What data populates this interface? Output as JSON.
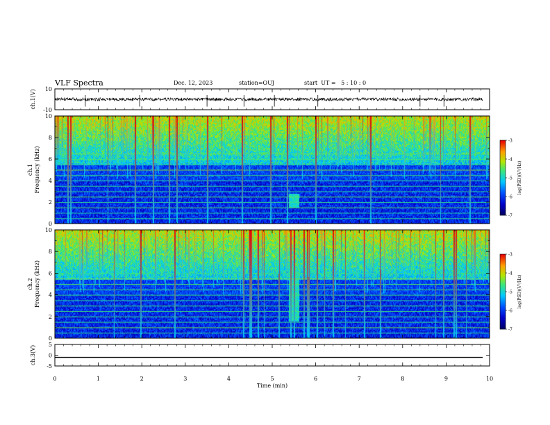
{
  "header": {
    "title": "VLF Spectra",
    "date": "Dec. 12, 2023",
    "station": "station=OUJ",
    "start_ut": "start  UT =   5 : 10 : 0"
  },
  "colors": {
    "background": "#ffffff",
    "axis": "#000000",
    "spec_base": "#1a1a8c"
  },
  "chart_data": [
    {
      "type": "line",
      "name": "ch1-waveform",
      "ylabel": "ch.1(V)",
      "ylim": [
        -10,
        10
      ],
      "yticks": [
        "10",
        "-10"
      ],
      "xlim": [
        0,
        10
      ],
      "baseline": 0,
      "spikes_min": [
        0.7,
        1.95,
        3.5,
        4.35,
        5.05,
        6.05,
        8.4,
        8.95
      ]
    },
    {
      "type": "heatmap",
      "name": "ch1-spectrogram",
      "ylabel": "ch.1\nFrequency (kHz)",
      "ylabel_line1": "ch.1",
      "ylabel_line2": "Frequency (kHz)",
      "ylim": [
        0,
        10
      ],
      "yticks": [
        "0",
        "2",
        "4",
        "6",
        "8",
        "10"
      ],
      "xlim": [
        0,
        10
      ],
      "colorbar": {
        "label": "log(PSD)(V²/Hz)",
        "range": [
          -7,
          -3
        ],
        "ticks": [
          "-3",
          "-4",
          "-5",
          "-6",
          "-7"
        ]
      },
      "features": [
        {
          "type": "line_harmonics_khz",
          "values": [
            0.5,
            1.0,
            1.5,
            2.0,
            2.5,
            3.0,
            3.5,
            4.0,
            4.5,
            5.0,
            5.5,
            6.0,
            6.5
          ]
        },
        {
          "type": "event",
          "time_min": 5.5,
          "freq_khz": [
            1.6,
            2.8
          ]
        }
      ]
    },
    {
      "type": "heatmap",
      "name": "ch2-spectrogram",
      "ylabel": "ch.2\nFrequency (kHz)",
      "ylabel_line1": "ch.2",
      "ylabel_line2": "Frequency (kHz)",
      "ylim": [
        0,
        10
      ],
      "yticks": [
        "0",
        "2",
        "4",
        "6",
        "8",
        "10"
      ],
      "xlim": [
        0,
        10
      ],
      "colorbar": {
        "label": "log(PSD)(V²/Hz)",
        "range": [
          -7,
          -3
        ],
        "ticks": [
          "-3",
          "-4",
          "-5",
          "-6",
          "-7"
        ]
      },
      "features": [
        {
          "type": "line_harmonics_khz",
          "values": [
            0.5,
            1.0,
            1.5,
            2.0,
            2.5,
            3.0,
            3.5,
            4.0,
            4.5,
            5.0,
            5.5,
            6.0
          ]
        },
        {
          "type": "event",
          "time_min": 5.5,
          "freq_khz": [
            1.6,
            7.0
          ]
        }
      ]
    },
    {
      "type": "line",
      "name": "ch3-waveform",
      "ylabel": "ch.3(V)",
      "ylim": [
        -5,
        5
      ],
      "yticks": [
        "5",
        "0",
        "-5"
      ],
      "xlim": [
        0,
        10
      ],
      "baseline": -1.0
    }
  ],
  "xaxis": {
    "label": "Time (min)",
    "ticks": [
      "0",
      "1",
      "2",
      "3",
      "4",
      "5",
      "6",
      "7",
      "8",
      "9",
      "10"
    ]
  }
}
